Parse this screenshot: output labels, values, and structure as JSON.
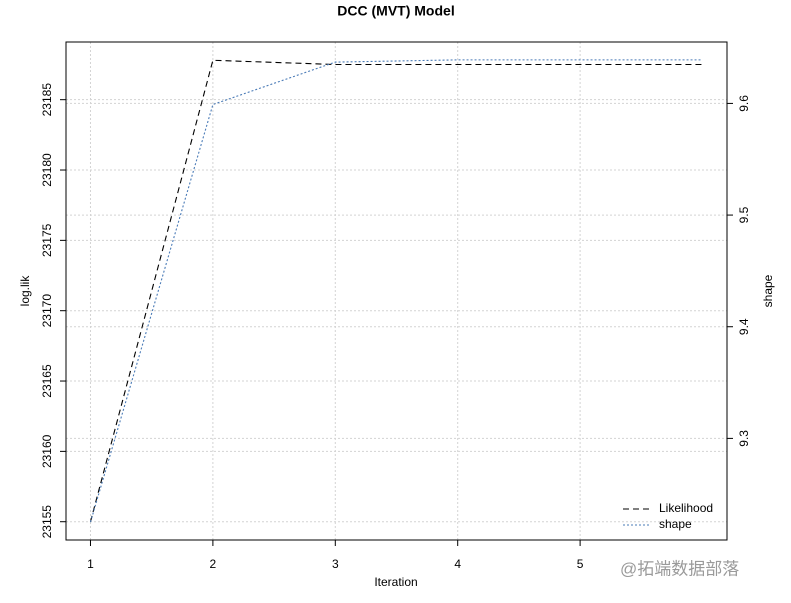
{
  "chart_data": {
    "type": "line",
    "title": "DCC (MVT) Model",
    "x_label": "Iteration",
    "y_label": "log.lik",
    "y2_label": "shape",
    "x": [
      1,
      2,
      3,
      4,
      5,
      6
    ],
    "series": [
      {
        "name": "Likelihood",
        "color": "#000000",
        "dash": "6,4",
        "values": [
          23155,
          23187.8,
          23187.5,
          23187.5,
          23187.5,
          23187.5
        ]
      },
      {
        "name": "shape",
        "color": "#4a7bb7",
        "dash": "2,2",
        "axis": "y2",
        "values": [
          9.225,
          9.599,
          9.637,
          9.639,
          9.639,
          9.639
        ]
      }
    ],
    "xlim": [
      0.8,
      6.2
    ],
    "xticks": [
      1,
      2,
      3,
      4,
      5
    ],
    "ylim": [
      23153.7,
      23189.1
    ],
    "yticks": [
      23155,
      23160,
      23165,
      23170,
      23175,
      23180,
      23185
    ],
    "y2lim": [
      9.209,
      9.655
    ],
    "y2ticks": [
      9.3,
      9.4,
      9.5,
      9.6
    ],
    "grid": true,
    "legend": "bottom-right",
    "watermark": "@拓端数据部落"
  }
}
